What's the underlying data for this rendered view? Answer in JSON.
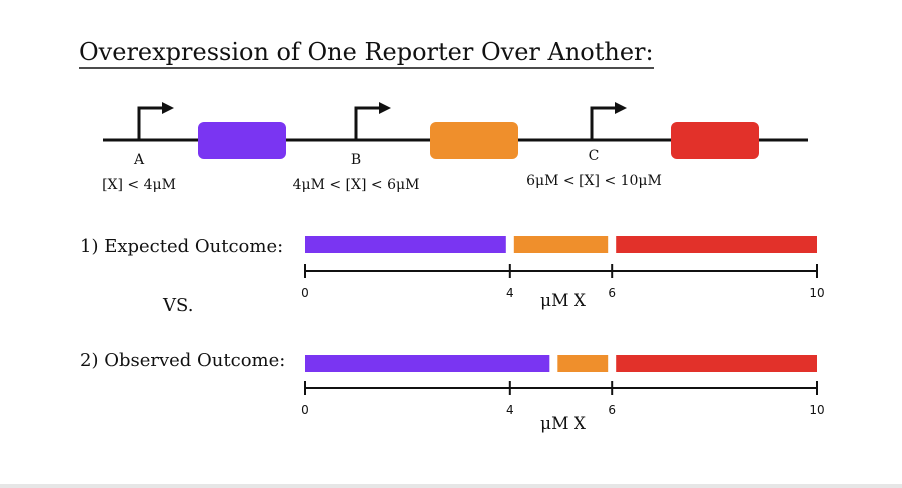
{
  "title": "Overexpression of One Reporter Over Another:",
  "colors": {
    "purple": "#7a35f2",
    "orange": "#ef8f2c",
    "red": "#e2312a",
    "line": "#111111"
  },
  "construct": {
    "promoters": [
      {
        "label": "A",
        "condition": "[X] < 4μM",
        "color": "#7a35f2"
      },
      {
        "label": "B",
        "condition": "4μM < [X] < 6μM",
        "color": "#ef8f2c"
      },
      {
        "label": "C",
        "condition": "6μM < [X] < 10μM",
        "color": "#e2312a"
      }
    ]
  },
  "chart_data": [
    {
      "type": "bar",
      "title": "1)  Expected Outcome:",
      "xlabel": "μM X",
      "xlim": [
        0,
        10
      ],
      "ticks": [
        0,
        4,
        6,
        10
      ],
      "segments": [
        {
          "start": 0,
          "end": 4,
          "color": "#7a35f2"
        },
        {
          "start": 4,
          "end": 6,
          "color": "#ef8f2c"
        },
        {
          "start": 6,
          "end": 10,
          "color": "#e2312a"
        }
      ]
    },
    {
      "type": "bar",
      "title": "2)  Observed Outcome:",
      "xlabel": "μM X",
      "xlim": [
        0,
        10
      ],
      "ticks": [
        0,
        4,
        6,
        10
      ],
      "segments": [
        {
          "start": 0,
          "end": 4.85,
          "color": "#7a35f2"
        },
        {
          "start": 4.85,
          "end": 6,
          "color": "#ef8f2c"
        },
        {
          "start": 6,
          "end": 10,
          "color": "#e2312a"
        }
      ]
    }
  ],
  "vs_label": "VS."
}
